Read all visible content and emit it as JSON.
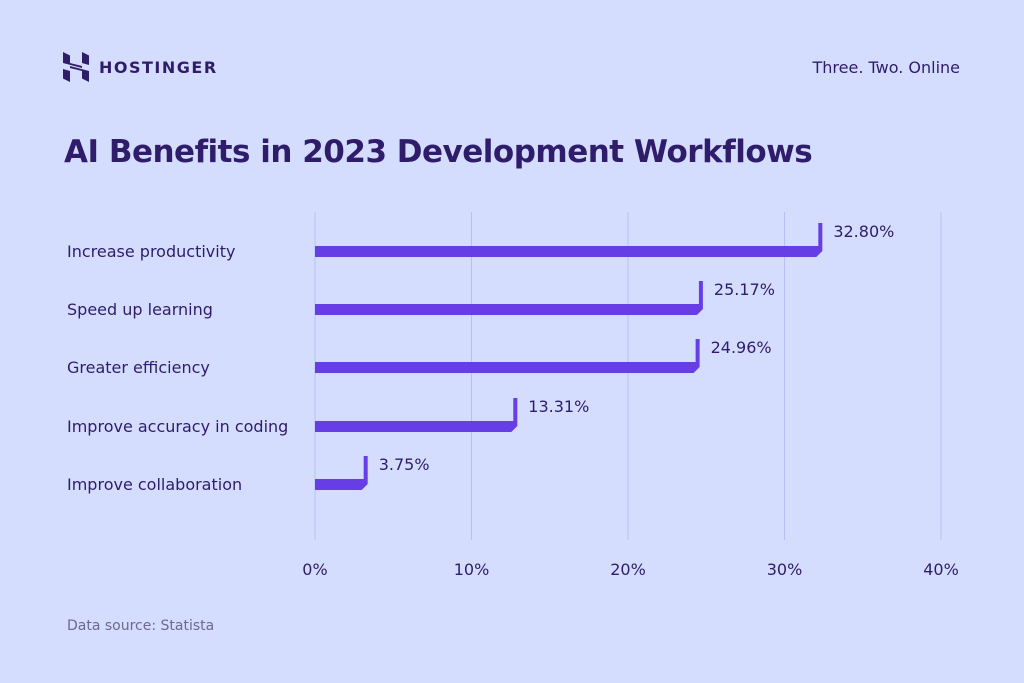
{
  "header": {
    "brand": "HOSTINGER",
    "tagline": "Three. Two. Online"
  },
  "footer": {
    "source": "Data source: Statista"
  },
  "colors": {
    "background": "#d5ddfe",
    "bar": "#673de6",
    "text": "#2f1c6a",
    "grid": "#b7bff5"
  },
  "chart_data": {
    "type": "bar",
    "orientation": "horizontal",
    "title": "AI Benefits in 2023 Development Workflows",
    "categories": [
      "Increase productivity",
      "Speed up learning",
      "Greater efficiency",
      "Improve accuracy in coding",
      "Improve collaboration"
    ],
    "values": [
      32.8,
      25.17,
      24.96,
      13.31,
      3.75
    ],
    "data_labels": [
      "32.80%",
      "25.17%",
      "24.96%",
      "13.31%",
      "3.75%"
    ],
    "xlim": [
      0,
      40
    ],
    "xticks": [
      0,
      10,
      20,
      30,
      40
    ],
    "xtick_labels": [
      "0%",
      "10%",
      "20%",
      "30%",
      "40%"
    ],
    "xlabel": "",
    "ylabel": "",
    "grid": true
  }
}
